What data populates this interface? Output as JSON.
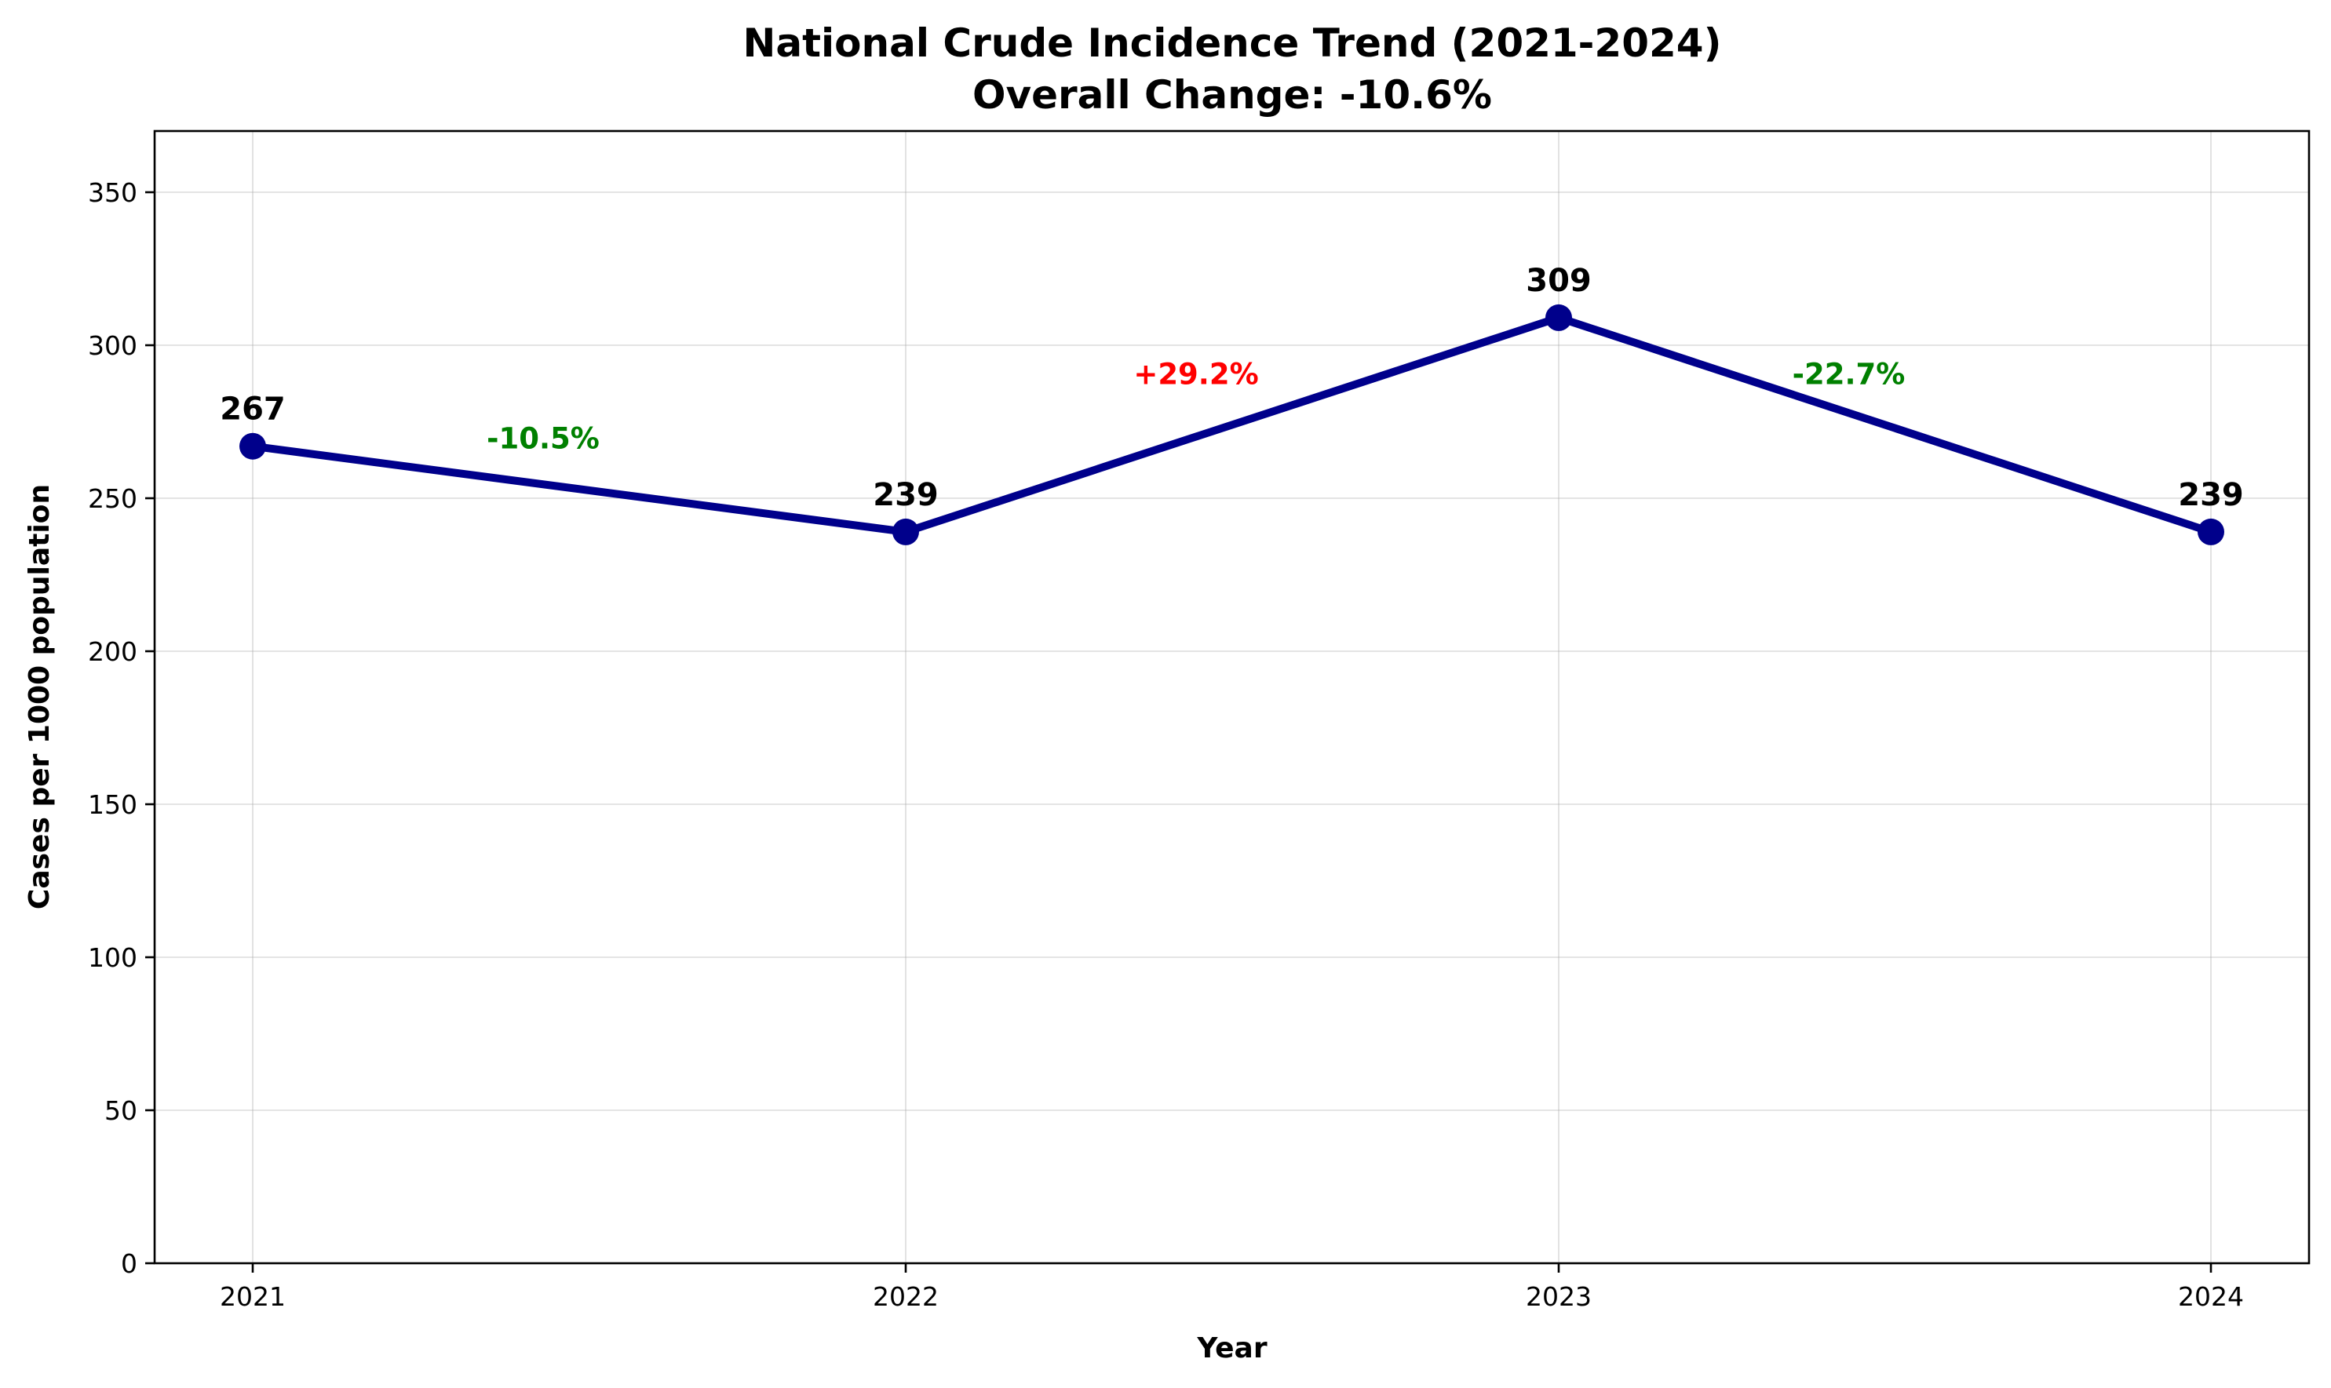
{
  "chart_data": {
    "type": "line",
    "title_line1": "National Crude Incidence Trend (2021-2024)",
    "title_line2": "Overall Change: -10.6%",
    "xlabel": "Year",
    "ylabel": "Cases per 1000 population",
    "x": [
      "2021",
      "2022",
      "2023",
      "2024"
    ],
    "series": [
      {
        "values": [
          267,
          239,
          309,
          239
        ],
        "color": "#00008b"
      }
    ],
    "value_labels": [
      "267",
      "239",
      "309",
      "239"
    ],
    "changes": [
      {
        "label": "-10.5%",
        "color": "#008000"
      },
      {
        "label": "+29.2%",
        "color": "#ff0000"
      },
      {
        "label": "-22.7%",
        "color": "#008000"
      }
    ],
    "ylim": [
      0,
      370
    ],
    "yticks": [
      0,
      50,
      100,
      150,
      200,
      250,
      300,
      350
    ],
    "grid": true
  }
}
